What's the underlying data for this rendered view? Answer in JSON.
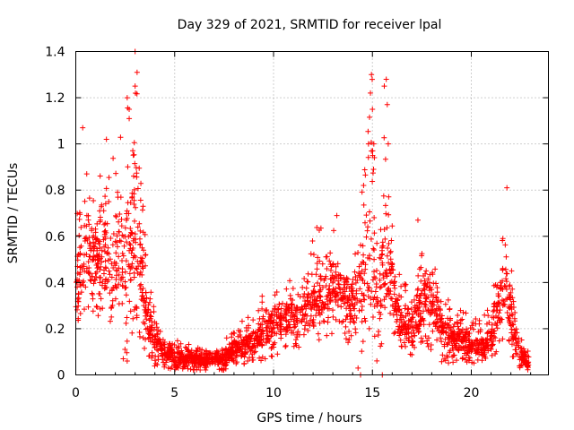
{
  "chart_data": {
    "type": "scatter",
    "title": "Day 329 of 2021, SRMTID for receiver lpal",
    "xlabel": "GPS time / hours",
    "ylabel": "SRMTID / TECUs",
    "xlim": [
      0,
      23.9
    ],
    "ylim": [
      0,
      1.4
    ],
    "x_ticks": [
      0,
      5,
      10,
      15,
      20
    ],
    "x_tick_labels": [
      "0",
      "5",
      "10",
      "15",
      "20"
    ],
    "y_ticks": [
      0,
      0.2,
      0.4,
      0.6,
      0.8,
      1.0,
      1.2,
      1.4
    ],
    "y_tick_labels": [
      "0",
      "0.2",
      "0.4",
      "0.6",
      "0.8",
      "1",
      "1.2",
      "1.4"
    ],
    "grid": true,
    "marker": "+",
    "series": [
      {
        "name": "SRMTID",
        "color": "#ff0000",
        "profile_x": [
          0,
          0.3,
          0.5,
          1.0,
          1.5,
          2.0,
          2.5,
          2.8,
          3.0,
          3.3,
          3.6,
          4.0,
          4.5,
          5.0,
          5.5,
          6.0,
          6.5,
          7.0,
          7.5,
          8.0,
          8.5,
          9.0,
          9.5,
          10.0,
          10.5,
          11.0,
          11.5,
          12.0,
          12.5,
          13.0,
          13.5,
          14.0,
          14.3,
          14.6,
          14.8,
          15.0,
          15.3,
          15.6,
          15.9,
          16.2,
          16.5,
          17.0,
          17.5,
          17.8,
          18.1,
          18.5,
          19.0,
          19.5,
          20.0,
          20.5,
          21.0,
          21.4,
          21.7,
          22.0,
          22.3,
          22.6,
          22.9
        ],
        "profile_median": [
          0.4,
          0.45,
          0.5,
          0.5,
          0.5,
          0.45,
          0.55,
          0.6,
          0.65,
          0.45,
          0.25,
          0.15,
          0.1,
          0.08,
          0.07,
          0.07,
          0.06,
          0.06,
          0.07,
          0.1,
          0.12,
          0.15,
          0.18,
          0.22,
          0.25,
          0.25,
          0.25,
          0.3,
          0.35,
          0.4,
          0.38,
          0.3,
          0.35,
          0.45,
          0.55,
          0.5,
          0.3,
          0.5,
          0.45,
          0.3,
          0.2,
          0.2,
          0.3,
          0.35,
          0.3,
          0.2,
          0.15,
          0.15,
          0.12,
          0.12,
          0.15,
          0.3,
          0.4,
          0.25,
          0.12,
          0.08,
          0.05
        ],
        "profile_max": [
          0.6,
          1.07,
          0.9,
          0.8,
          1.02,
          0.95,
          1.2,
          1.2,
          1.4,
          0.9,
          0.5,
          0.3,
          0.2,
          0.17,
          0.15,
          0.14,
          0.12,
          0.12,
          0.15,
          0.2,
          0.25,
          0.3,
          0.35,
          0.38,
          0.4,
          0.45,
          0.45,
          0.6,
          0.7,
          0.65,
          0.5,
          0.55,
          0.7,
          1.0,
          1.3,
          1.3,
          0.45,
          1.28,
          0.85,
          0.5,
          0.4,
          0.4,
          0.67,
          0.55,
          0.55,
          0.4,
          0.3,
          0.3,
          0.25,
          0.25,
          0.3,
          0.55,
          0.81,
          0.55,
          0.25,
          0.15,
          0.1
        ],
        "profile_min": [
          0.1,
          0.25,
          0.3,
          0.25,
          0.2,
          0.2,
          0.05,
          0.05,
          0.3,
          0.1,
          0.05,
          0.03,
          0.03,
          0.02,
          0.02,
          0.02,
          0.02,
          0.02,
          0.02,
          0.03,
          0.04,
          0.05,
          0.06,
          0.08,
          0.1,
          0.1,
          0.1,
          0.15,
          0.15,
          0.15,
          0.15,
          0.1,
          0.0,
          0.15,
          0.2,
          0.2,
          0.0,
          0.2,
          0.2,
          0.15,
          0.1,
          0.08,
          0.08,
          0.1,
          0.1,
          0.05,
          0.05,
          0.05,
          0.05,
          0.05,
          0.05,
          0.1,
          0.15,
          0.08,
          0.04,
          0.02,
          0.02
        ],
        "outliers": [
          [
            3.0,
            1.4
          ],
          [
            2.6,
            1.2
          ],
          [
            2.7,
            1.15
          ],
          [
            3.1,
            1.31
          ],
          [
            3.0,
            1.25
          ],
          [
            0.35,
            1.07
          ],
          [
            1.55,
            1.02
          ],
          [
            14.95,
            1.3
          ],
          [
            14.9,
            1.22
          ],
          [
            15.0,
            1.15
          ],
          [
            15.7,
            1.28
          ],
          [
            15.6,
            1.25
          ],
          [
            15.75,
            1.17
          ],
          [
            14.8,
            1.0
          ],
          [
            15.8,
            1.0
          ],
          [
            21.8,
            0.81
          ],
          [
            17.3,
            0.67
          ],
          [
            13.2,
            0.69
          ],
          [
            14.4,
            0.0
          ],
          [
            15.5,
            0.0
          ],
          [
            2.4,
            0.07
          ],
          [
            2.6,
            0.06
          ]
        ]
      }
    ]
  }
}
